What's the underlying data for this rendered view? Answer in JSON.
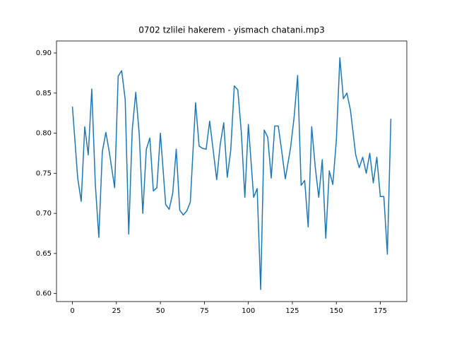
{
  "chart_data": {
    "type": "line",
    "title": "0702 tzlilei hakerem - yismach chatani.mp3",
    "x": [
      0,
      3,
      5,
      7,
      9,
      11,
      13,
      15,
      17,
      19,
      21,
      24,
      26,
      28,
      30,
      32,
      34,
      36,
      38,
      40,
      42,
      44,
      46,
      48,
      50,
      53,
      55,
      57,
      59,
      61,
      63,
      65,
      67,
      70,
      72,
      74,
      76,
      78,
      80,
      82,
      84,
      86,
      88,
      90,
      92,
      94,
      96,
      98,
      100,
      103,
      105,
      107,
      109,
      111,
      113,
      115,
      117,
      119,
      121,
      124,
      126,
      128,
      130,
      132,
      134,
      136,
      138,
      140,
      142,
      144,
      146,
      148,
      150,
      152,
      154,
      156,
      158,
      161,
      163,
      165,
      167,
      169,
      171,
      173,
      175,
      177,
      179,
      181
    ],
    "series": [
      {
        "color": "#1f77b4",
        "values": [
          0.833,
          0.744,
          0.715,
          0.808,
          0.773,
          0.855,
          0.737,
          0.67,
          0.777,
          0.801,
          0.776,
          0.732,
          0.871,
          0.878,
          0.842,
          0.674,
          0.804,
          0.851,
          0.798,
          0.7,
          0.78,
          0.794,
          0.728,
          0.732,
          0.8,
          0.711,
          0.705,
          0.725,
          0.78,
          0.704,
          0.698,
          0.703,
          0.714,
          0.838,
          0.784,
          0.781,
          0.78,
          0.815,
          0.779,
          0.742,
          0.786,
          0.813,
          0.745,
          0.779,
          0.859,
          0.854,
          0.801,
          0.72,
          0.811,
          0.72,
          0.731,
          0.605,
          0.804,
          0.795,
          0.744,
          0.809,
          0.809,
          0.777,
          0.743,
          0.782,
          0.82,
          0.872,
          0.735,
          0.741,
          0.683,
          0.808,
          0.758,
          0.72,
          0.767,
          0.669,
          0.753,
          0.736,
          0.791,
          0.894,
          0.843,
          0.85,
          0.829,
          0.773,
          0.757,
          0.77,
          0.75,
          0.775,
          0.738,
          0.77,
          0.721,
          0.721,
          0.649,
          0.818
        ]
      }
    ],
    "xlim": [
      -9.05,
      190.05
    ],
    "ylim": [
      0.59,
      0.915
    ],
    "xticks": [
      0,
      25,
      50,
      75,
      100,
      125,
      150,
      175
    ],
    "yticks": [
      {
        "value": 0.6,
        "label": "0.60"
      },
      {
        "value": 0.65,
        "label": "0.65"
      },
      {
        "value": 0.7,
        "label": "0.70"
      },
      {
        "value": 0.75,
        "label": "0.75"
      },
      {
        "value": 0.8,
        "label": "0.80"
      },
      {
        "value": 0.85,
        "label": "0.85"
      },
      {
        "value": 0.9,
        "label": "0.90"
      }
    ]
  }
}
